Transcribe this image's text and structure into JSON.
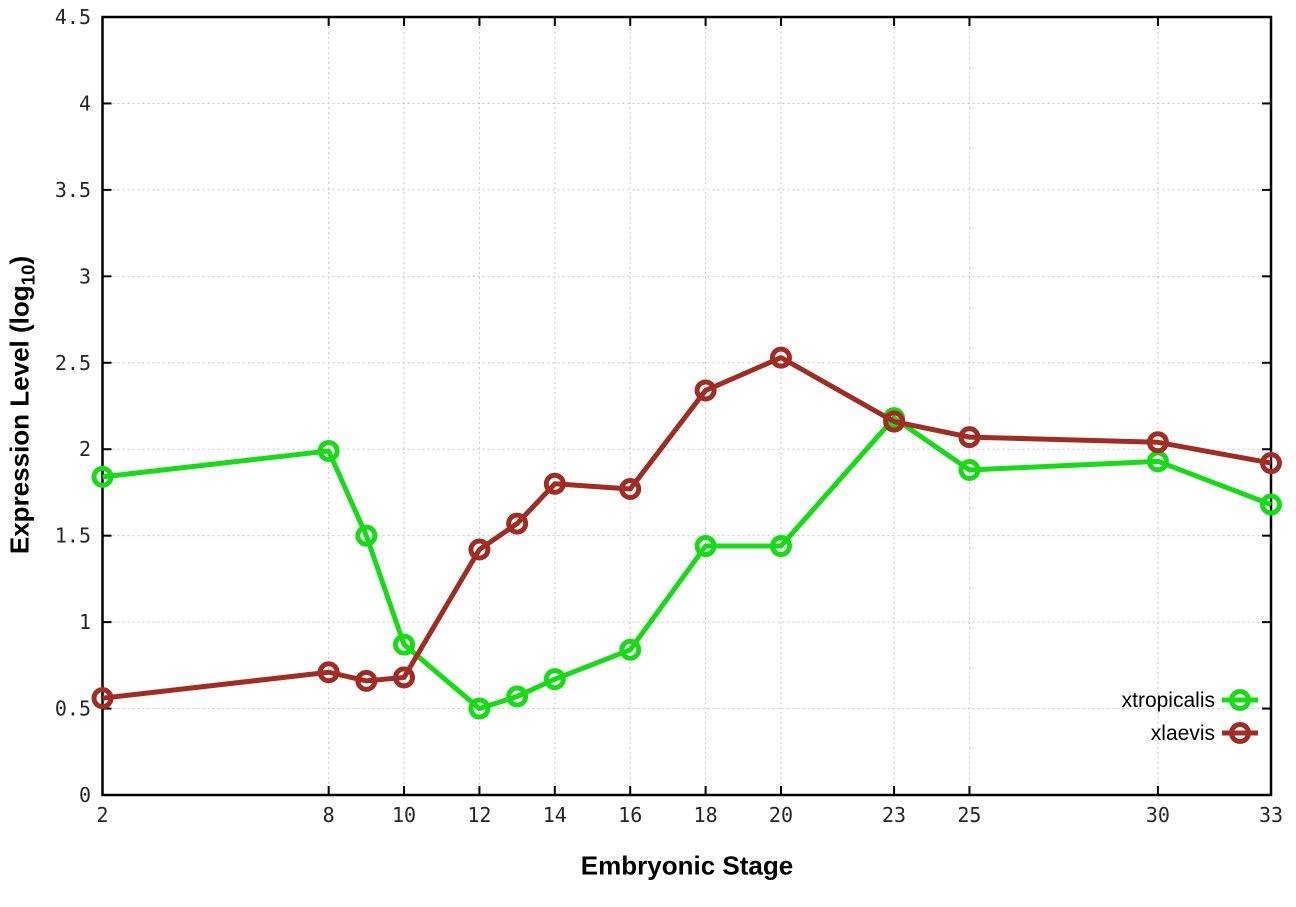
{
  "chart_data": {
    "type": "line",
    "title": "",
    "xlabel": "Embryonic Stage",
    "ylabel": {
      "pre": "Expression Level (log",
      "sub": "10",
      "post": ")"
    },
    "xlim": [
      2,
      33
    ],
    "ylim": [
      0,
      4.5
    ],
    "grid": true,
    "legend_position": "bottom-right-inside",
    "x_ticks": [
      2,
      8,
      10,
      12,
      14,
      16,
      18,
      20,
      23,
      25,
      30,
      33
    ],
    "y_ticks": [
      "0",
      "0.5",
      "1",
      "1.5",
      "2",
      "2.5",
      "3",
      "3.5",
      "4",
      "4.5"
    ],
    "x": [
      2,
      8,
      9,
      10,
      12,
      13,
      14,
      16,
      18,
      20,
      23,
      25,
      30,
      33
    ],
    "series": [
      {
        "name": "xtropicalis",
        "color": "#15dc15",
        "marker": "open-circle",
        "values": [
          1.84,
          1.99,
          1.5,
          0.87,
          0.5,
          0.57,
          0.67,
          0.84,
          1.44,
          1.44,
          2.18,
          1.88,
          1.93,
          1.68
        ]
      },
      {
        "name": "xlaevis",
        "color": "#a22c22",
        "marker": "open-circle",
        "values": [
          0.56,
          0.71,
          0.66,
          0.68,
          1.42,
          1.57,
          1.8,
          1.77,
          2.34,
          2.53,
          2.16,
          2.07,
          2.04,
          1.92
        ]
      }
    ],
    "colors": {
      "background": "#ffffff",
      "grid": "#c8c8c8",
      "border": "#000000",
      "tick_label": "#262626",
      "axis_label": "#000000"
    }
  }
}
